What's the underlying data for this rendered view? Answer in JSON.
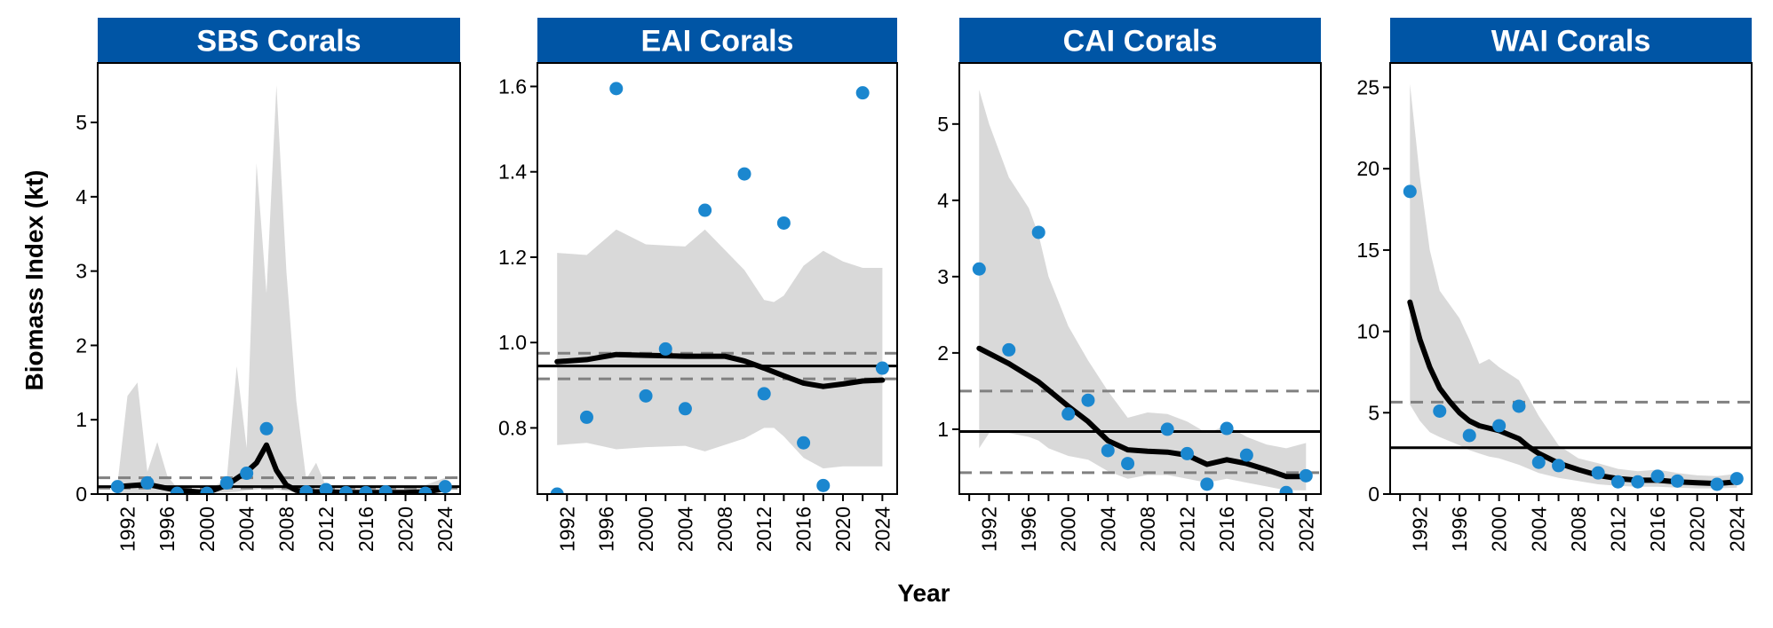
{
  "figure": {
    "xlabel": "Year",
    "ylabel": "Biomass Index (kt)",
    "strip_color": "#0055a5",
    "point_color": "#1b87cf",
    "band_color": "#d9d9d9",
    "line_color": "#000000",
    "ref_dash_color": "#808080"
  },
  "chart_data": [
    {
      "type": "line",
      "title": "SBS Corals",
      "xlim": [
        1989,
        2025.5
      ],
      "ylim": [
        0,
        5.8
      ],
      "x_ticks": [
        1992,
        1996,
        2000,
        2004,
        2008,
        2012,
        2016,
        2020,
        2024
      ],
      "y_ticks": [
        0,
        1,
        2,
        3,
        4,
        5
      ],
      "y_tick_labels": [
        "0",
        "1",
        "2",
        "3",
        "4",
        "5"
      ],
      "reference_mean": 0.1,
      "reference_bounds": [
        0.08,
        0.22
      ],
      "series": [
        {
          "kind": "points",
          "x": [
            1991,
            1994,
            1997,
            2000,
            2002,
            2004,
            2006,
            2010,
            2012,
            2014,
            2016,
            2018,
            2022,
            2024
          ],
          "y": [
            0.1,
            0.15,
            0.01,
            0.01,
            0.15,
            0.28,
            0.88,
            0.03,
            0.06,
            0.02,
            0.02,
            0.03,
            0.01,
            0.1
          ]
        },
        {
          "kind": "line",
          "x": [
            1991,
            1994,
            1997,
            2000,
            2002,
            2004,
            2005,
            2006,
            2007,
            2008,
            2009,
            2010,
            2012,
            2014,
            2016,
            2018,
            2020,
            2022,
            2024
          ],
          "y": [
            0.1,
            0.13,
            0.05,
            0.02,
            0.12,
            0.3,
            0.42,
            0.66,
            0.32,
            0.12,
            0.05,
            0.03,
            0.03,
            0.02,
            0.02,
            0.02,
            0.02,
            0.03,
            0.07
          ]
        },
        {
          "kind": "band",
          "x": [
            1991,
            1992,
            1993,
            1994,
            1995,
            1996,
            1997,
            1998,
            2000,
            2002,
            2003,
            2004,
            2005,
            2006,
            2007,
            2008,
            2009,
            2010,
            2011,
            2012,
            2014,
            2016,
            2018,
            2020,
            2022,
            2024
          ],
          "lower": [
            0.01,
            0.01,
            0.01,
            0.01,
            0.01,
            0.01,
            0.01,
            0.01,
            0.01,
            0.02,
            0.03,
            0.05,
            0.06,
            0.08,
            0.06,
            0.04,
            0.02,
            0.01,
            0.01,
            0.01,
            0.01,
            0.01,
            0.01,
            0.01,
            0.01,
            0.03
          ],
          "upper": [
            0.15,
            1.32,
            1.5,
            0.3,
            0.7,
            0.25,
            0.08,
            0.05,
            0.05,
            0.2,
            1.72,
            0.62,
            4.45,
            2.7,
            5.5,
            3.0,
            1.25,
            0.2,
            0.42,
            0.1,
            0.08,
            0.08,
            0.1,
            0.1,
            0.12,
            0.22
          ]
        }
      ]
    },
    {
      "type": "line",
      "title": "EAI Corals",
      "xlim": [
        1989,
        2025.5
      ],
      "ylim": [
        0.645,
        1.655
      ],
      "x_ticks": [
        1992,
        1996,
        2000,
        2004,
        2008,
        2012,
        2016,
        2020,
        2024
      ],
      "y_ticks": [
        0.8,
        1.0,
        1.2,
        1.4,
        1.6
      ],
      "y_tick_labels": [
        "0.8",
        "1.0",
        "1.2",
        "1.4",
        "1.6"
      ],
      "reference_mean": 0.945,
      "reference_bounds": [
        0.915,
        0.975
      ],
      "series": [
        {
          "kind": "points",
          "x": [
            1991,
            1994,
            1997,
            2000,
            2002,
            2004,
            2006,
            2010,
            2012,
            2014,
            2016,
            2018,
            2022,
            2024
          ],
          "y": [
            0.645,
            0.825,
            1.595,
            0.875,
            0.985,
            0.845,
            1.31,
            1.395,
            0.88,
            1.28,
            0.765,
            0.665,
            1.585,
            0.94
          ]
        },
        {
          "kind": "line",
          "x": [
            1991,
            1994,
            1997,
            2000,
            2004,
            2008,
            2010,
            2012,
            2014,
            2016,
            2018,
            2020,
            2022,
            2024
          ],
          "y": [
            0.955,
            0.96,
            0.972,
            0.97,
            0.968,
            0.968,
            0.957,
            0.94,
            0.922,
            0.905,
            0.897,
            0.903,
            0.91,
            0.912
          ]
        },
        {
          "kind": "band",
          "x": [
            1991,
            1994,
            1997,
            2000,
            2004,
            2006,
            2010,
            2012,
            2013,
            2014,
            2016,
            2018,
            2020,
            2022,
            2024
          ],
          "lower": [
            0.76,
            0.765,
            0.75,
            0.755,
            0.758,
            0.745,
            0.775,
            0.8,
            0.8,
            0.78,
            0.73,
            0.705,
            0.71,
            0.71,
            0.71
          ],
          "upper": [
            1.21,
            1.205,
            1.265,
            1.23,
            1.225,
            1.265,
            1.17,
            1.1,
            1.095,
            1.11,
            1.18,
            1.215,
            1.19,
            1.175,
            1.175
          ]
        }
      ]
    },
    {
      "type": "line",
      "title": "CAI Corals",
      "xlim": [
        1989,
        2025.5
      ],
      "ylim": [
        0.15,
        5.8
      ],
      "x_ticks": [
        1992,
        1996,
        2000,
        2004,
        2008,
        2012,
        2016,
        2020,
        2024
      ],
      "y_ticks": [
        1,
        2,
        3,
        4,
        5
      ],
      "y_tick_labels": [
        "1",
        "2",
        "3",
        "4",
        "5"
      ],
      "reference_mean": 0.97,
      "reference_bounds": [
        0.43,
        1.5
      ],
      "series": [
        {
          "kind": "points",
          "x": [
            1991,
            1994,
            1997,
            2000,
            2002,
            2004,
            2006,
            2010,
            2012,
            2014,
            2016,
            2018,
            2022,
            2024
          ],
          "y": [
            3.1,
            2.04,
            3.58,
            1.2,
            1.38,
            0.72,
            0.55,
            1.0,
            0.68,
            0.28,
            1.01,
            0.66,
            0.17,
            0.39
          ]
        },
        {
          "kind": "line",
          "x": [
            1991,
            1994,
            1997,
            2000,
            2002,
            2004,
            2006,
            2008,
            2010,
            2012,
            2014,
            2016,
            2018,
            2020,
            2022,
            2024
          ],
          "y": [
            2.06,
            1.86,
            1.62,
            1.3,
            1.1,
            0.85,
            0.73,
            0.71,
            0.7,
            0.66,
            0.54,
            0.6,
            0.55,
            0.47,
            0.38,
            0.38
          ]
        },
        {
          "kind": "band",
          "x": [
            1991,
            1992,
            1994,
            1996,
            1997,
            1998,
            2000,
            2002,
            2004,
            2006,
            2008,
            2010,
            2012,
            2014,
            2016,
            2018,
            2020,
            2022,
            2024
          ],
          "lower": [
            0.75,
            0.95,
            0.95,
            0.9,
            0.85,
            0.75,
            0.65,
            0.6,
            0.45,
            0.35,
            0.4,
            0.4,
            0.35,
            0.3,
            0.35,
            0.3,
            0.25,
            0.2,
            0.2
          ],
          "upper": [
            5.45,
            5.0,
            4.3,
            3.9,
            3.55,
            3.0,
            2.35,
            1.9,
            1.5,
            1.15,
            1.22,
            1.2,
            1.1,
            0.95,
            1.05,
            0.9,
            0.8,
            0.75,
            0.82
          ]
        }
      ]
    },
    {
      "type": "line",
      "title": "WAI Corals",
      "xlim": [
        1989,
        2025.5
      ],
      "ylim": [
        0,
        26.5
      ],
      "x_ticks": [
        1992,
        1996,
        2000,
        2004,
        2008,
        2012,
        2016,
        2020,
        2024
      ],
      "y_ticks": [
        0,
        5,
        10,
        15,
        20,
        25
      ],
      "y_tick_labels": [
        "0",
        "5",
        "10",
        "15",
        "20",
        "25"
      ],
      "reference_mean": 2.85,
      "reference_bounds": [
        5.65
      ],
      "series": [
        {
          "kind": "points",
          "x": [
            1991,
            1994,
            1997,
            2000,
            2002,
            2004,
            2006,
            2010,
            2012,
            2014,
            2016,
            2018,
            2022,
            2024
          ],
          "y": [
            18.6,
            5.1,
            3.6,
            4.2,
            5.4,
            1.95,
            1.75,
            1.3,
            0.75,
            0.75,
            1.1,
            0.8,
            0.6,
            0.95
          ]
        },
        {
          "kind": "line",
          "x": [
            1991,
            1992,
            1993,
            1994,
            1995,
            1996,
            1997,
            1998,
            2000,
            2002,
            2003,
            2004,
            2006,
            2008,
            2010,
            2012,
            2014,
            2016,
            2018,
            2020,
            2022,
            2024
          ],
          "y": [
            11.8,
            9.5,
            7.8,
            6.5,
            5.7,
            5.0,
            4.5,
            4.2,
            3.9,
            3.4,
            2.9,
            2.5,
            1.9,
            1.5,
            1.15,
            0.95,
            0.85,
            0.85,
            0.75,
            0.7,
            0.65,
            0.75
          ]
        },
        {
          "kind": "band",
          "x": [
            1991,
            1992,
            1993,
            1994,
            1996,
            1997,
            1998,
            1999,
            2000,
            2002,
            2004,
            2006,
            2008,
            2010,
            2012,
            2014,
            2016,
            2018,
            2020,
            2022,
            2024
          ],
          "lower": [
            5.5,
            4.5,
            3.8,
            3.5,
            3.0,
            2.7,
            2.5,
            2.3,
            2.2,
            1.8,
            1.3,
            1.0,
            0.8,
            0.6,
            0.5,
            0.45,
            0.45,
            0.4,
            0.35,
            0.35,
            0.4
          ],
          "upper": [
            25.2,
            19.5,
            15.0,
            12.5,
            10.8,
            9.5,
            8.0,
            8.3,
            7.8,
            7.0,
            4.8,
            3.0,
            2.2,
            1.9,
            1.55,
            1.4,
            1.5,
            1.3,
            1.15,
            1.1,
            1.25
          ]
        }
      ]
    }
  ]
}
